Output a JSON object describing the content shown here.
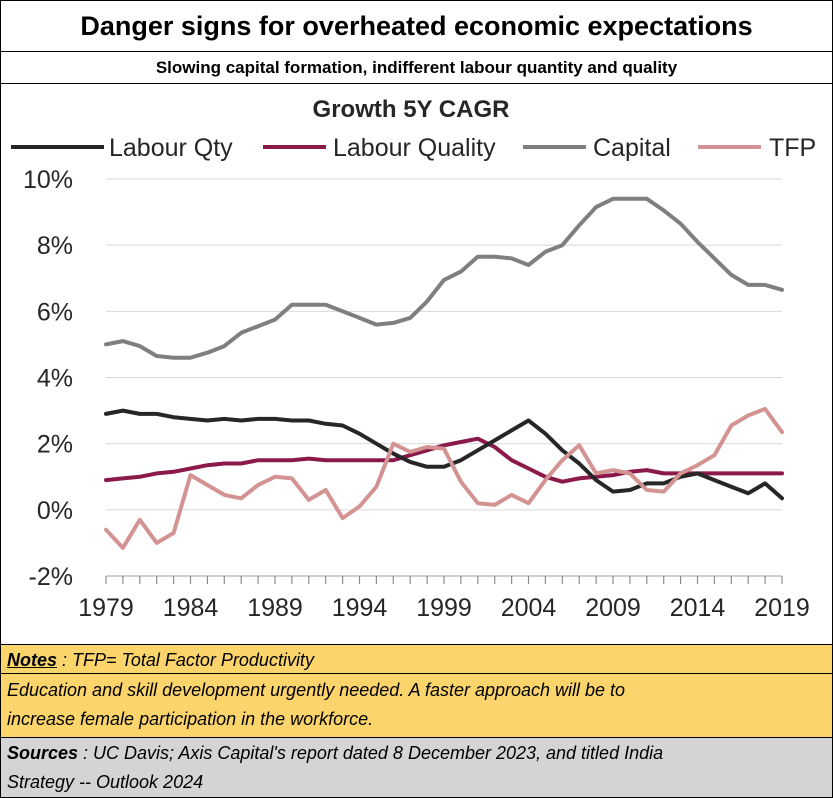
{
  "header": {
    "title": "Danger signs for overheated economic expectations",
    "subtitle": "Slowing capital formation, indifferent labour quantity and quality"
  },
  "chart_data": {
    "type": "line",
    "title": "Growth 5Y CAGR",
    "xlabel": "",
    "ylabel": "",
    "x": [
      1979,
      1980,
      1981,
      1982,
      1983,
      1984,
      1985,
      1986,
      1987,
      1988,
      1989,
      1990,
      1991,
      1992,
      1993,
      1994,
      1995,
      1996,
      1997,
      1998,
      1999,
      2000,
      2001,
      2002,
      2003,
      2004,
      2005,
      2006,
      2007,
      2008,
      2009,
      2010,
      2011,
      2012,
      2013,
      2014,
      2015,
      2016,
      2017,
      2018,
      2019
    ],
    "x_ticks": [
      "1979",
      "1984",
      "1989",
      "1994",
      "1999",
      "2004",
      "2009",
      "2014",
      "2019"
    ],
    "y_ticks": [
      "10%",
      "8%",
      "6%",
      "4%",
      "2%",
      "0%",
      "-2%"
    ],
    "y_tick_values": [
      10,
      8,
      6,
      4,
      2,
      0,
      -2
    ],
    "ylim": [
      -2,
      10
    ],
    "grid": "horizontal",
    "legend_position": "top",
    "series": [
      {
        "name": "Labour Qty",
        "color": "#262626",
        "values": [
          2.9,
          3.0,
          2.9,
          2.9,
          2.8,
          2.75,
          2.7,
          2.75,
          2.7,
          2.75,
          2.75,
          2.7,
          2.7,
          2.6,
          2.55,
          2.3,
          2.0,
          1.7,
          1.45,
          1.3,
          1.3,
          1.5,
          1.8,
          2.1,
          2.4,
          2.7,
          2.3,
          1.8,
          1.4,
          0.9,
          0.55,
          0.6,
          0.8,
          0.8,
          1.0,
          1.1,
          0.9,
          0.7,
          0.5,
          0.8,
          0.35
        ]
      },
      {
        "name": "Labour Quality",
        "color": "#8b1a4a",
        "values": [
          0.9,
          0.95,
          1.0,
          1.1,
          1.15,
          1.25,
          1.35,
          1.4,
          1.4,
          1.5,
          1.5,
          1.5,
          1.55,
          1.5,
          1.5,
          1.5,
          1.5,
          1.5,
          1.65,
          1.8,
          1.95,
          2.05,
          2.15,
          1.9,
          1.5,
          1.25,
          1.0,
          0.85,
          0.95,
          1.0,
          1.05,
          1.15,
          1.2,
          1.1,
          1.1,
          1.1,
          1.1,
          1.1,
          1.1,
          1.1,
          1.1
        ]
      },
      {
        "name": "Capital",
        "color": "#7f7f7f",
        "values": [
          5.0,
          5.1,
          4.95,
          4.65,
          4.6,
          4.6,
          4.75,
          4.95,
          5.35,
          5.55,
          5.75,
          6.2,
          6.2,
          6.2,
          6.0,
          5.8,
          5.6,
          5.65,
          5.8,
          6.3,
          6.95,
          7.2,
          7.65,
          7.65,
          7.6,
          7.4,
          7.8,
          8.0,
          8.6,
          9.15,
          9.4,
          9.4,
          9.4,
          9.05,
          8.65,
          8.1,
          7.6,
          7.1,
          6.8,
          6.8,
          6.65
        ]
      },
      {
        "name": "TFP",
        "color": "#d49393",
        "values": [
          -0.6,
          -1.15,
          -0.3,
          -1.0,
          -0.7,
          1.05,
          0.75,
          0.45,
          0.35,
          0.75,
          1.0,
          0.95,
          0.3,
          0.6,
          -0.25,
          0.1,
          0.7,
          2.0,
          1.75,
          1.9,
          1.85,
          0.85,
          0.2,
          0.15,
          0.45,
          0.2,
          0.9,
          1.5,
          1.95,
          1.1,
          1.2,
          1.1,
          0.6,
          0.55,
          1.1,
          1.35,
          1.65,
          2.55,
          2.85,
          3.05,
          2.35
        ]
      }
    ]
  },
  "notes": {
    "label": "Notes",
    "text": " : TFP= Total Factor Productivity",
    "line1": "Education and skill development urgently needed.  A faster approach will be to",
    "line2": "increase female participation in the workforce."
  },
  "sources": {
    "label": "Sources",
    "line1": " : UC Davis; Axis Capital's report dated 8 December 2023, and titled India",
    "line2": "Strategy -- Outlook 2024"
  }
}
